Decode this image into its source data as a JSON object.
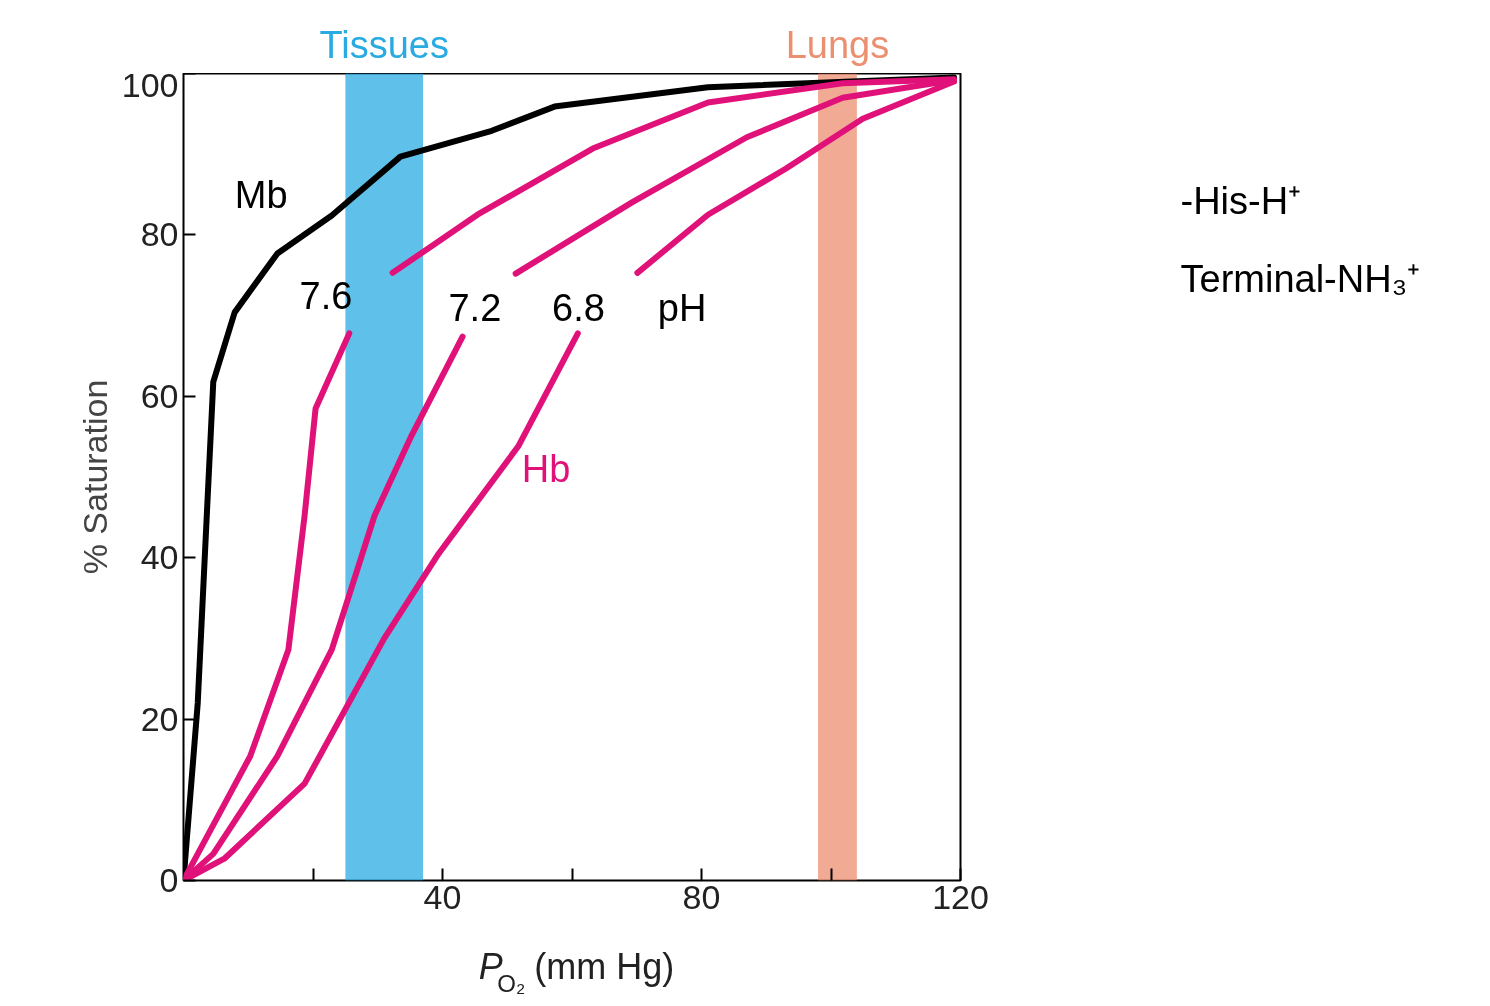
{
  "chart_data": {
    "type": "line",
    "xlabel": "P$_{O₂}$ (mm Hg)",
    "ylabel": "% Saturation",
    "xlim": [
      0,
      120
    ],
    "ylim": [
      0,
      100
    ],
    "xticks": [
      {
        "value": 20,
        "label": null
      },
      40,
      {
        "value": 60,
        "label": null
      },
      80,
      {
        "value": 100,
        "label": null
      },
      120
    ],
    "yticks": [
      0,
      20,
      40,
      60,
      80,
      100
    ],
    "grid": false,
    "marker": "none",
    "line_style": "solid",
    "bands": [
      {
        "axis": "x",
        "from": 25,
        "to": 37,
        "label": "Tissues",
        "color": "#29abe2"
      },
      {
        "axis": "x",
        "from": 98,
        "to": 104,
        "label": "Lungs",
        "color": "#ec8f70"
      }
    ],
    "series": [
      {
        "color": "#000000",
        "x": [
          0,
          2.2,
          3.4,
          4.6,
          7.9,
          14.5,
          22.9,
          33.5,
          47.6,
          57.3,
          81,
          119
        ],
        "values": [
          0,
          22,
          42,
          61.8,
          70.4,
          77.7,
          82.4,
          89.7,
          92.9,
          95.9,
          98.3,
          99.5
        ]
      },
      {
        "color": "#e0127a",
        "x": [
          0,
          2.2,
          10.3,
          16.2,
          18.7,
          20.4,
          25.6,
          29,
          32.3,
          45.4,
          63.2,
          81,
          101.8,
          119
        ],
        "values": [
          0,
          3.3,
          15.4,
          28.6,
          45.2,
          58.5,
          67.8,
          null,
          75.3,
          82.5,
          90.7,
          96.4,
          98.8,
          99.3
        ]
      },
      {
        "color": "#e0127a",
        "x": [
          0,
          4.6,
          14.5,
          22.9,
          29.5,
          35.2,
          43.1,
          47,
          51.3,
          69.2,
          87,
          101.8,
          119
        ],
        "values": [
          0,
          3.3,
          15.4,
          28.6,
          45.2,
          55.1,
          67.4,
          null,
          75.2,
          84.0,
          92.1,
          97,
          99.2
        ]
      },
      {
        "color": "#e0127a",
        "x": [
          0,
          6.3,
          18.7,
          31,
          39.4,
          51.7,
          60.9,
          65,
          70.1,
          81,
          93,
          104.9,
          119
        ],
        "values": [
          0,
          2.7,
          12,
          30,
          40.5,
          53.8,
          67.8,
          null,
          75.3,
          82.5,
          88.2,
          94.4,
          99
        ]
      }
    ],
    "annotations": [
      "Mb",
      "7.6",
      "7.2",
      "6.8",
      "pH",
      "Hb",
      "-His-H⁺",
      "Terminal-NH₃⁺"
    ]
  }
}
